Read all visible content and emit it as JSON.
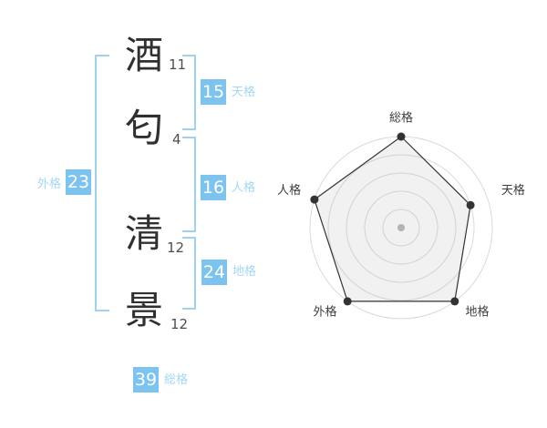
{
  "name_panel": {
    "characters": [
      {
        "char": "酒",
        "strokes": "11"
      },
      {
        "char": "匂",
        "strokes": "4"
      },
      {
        "char": "清",
        "strokes": "12"
      },
      {
        "char": "景",
        "strokes": "12"
      }
    ]
  },
  "kaku": {
    "tenkaku": {
      "label": "天格",
      "value": "15"
    },
    "jinkaku": {
      "label": "人格",
      "value": "16"
    },
    "chikaku": {
      "label": "地格",
      "value": "24"
    },
    "gaikaku": {
      "label": "外格",
      "value": "23"
    },
    "soukaku": {
      "label": "総格",
      "value": "39"
    }
  },
  "colors": {
    "badge-bg": "#7cc4ef",
    "badge-text": "#ffffff",
    "label-color": "#a3d7f4",
    "bracket-color": "#9fd1f1",
    "kanji-color": "#303030",
    "stroke-color": "#4d4d4d"
  },
  "chart_data": {
    "type": "radar",
    "categories": [
      "総格",
      "天格",
      "地格",
      "外格",
      "人格"
    ],
    "values_percent": [
      100,
      80,
      100,
      100,
      100
    ],
    "values_scale5": [
      5,
      4,
      5,
      5,
      5
    ],
    "max_percent": 100,
    "rings_percent": [
      20,
      40,
      60,
      80,
      100
    ],
    "grid": "circular",
    "start_angle_deg": -90,
    "legend": "none",
    "ring_color": "#dadada",
    "line_color": "#333333",
    "dot_color": "#333333",
    "fill": "rgba(170,170,170,0.16)",
    "center_dot_color": "#b3b3b3",
    "label_color": "#3d3d3d"
  }
}
